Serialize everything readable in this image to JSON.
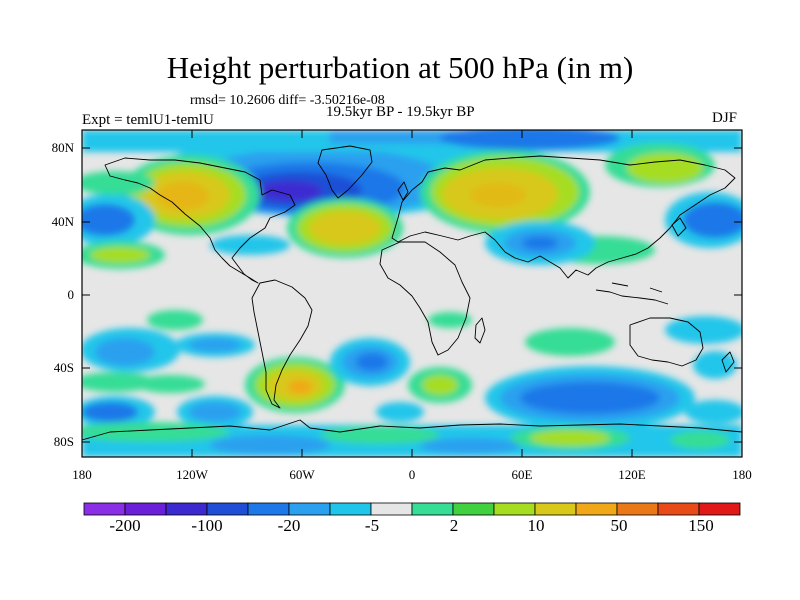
{
  "title": "Height perturbation at 500 hPa (in m)",
  "stats_line": "rmsd= 10.2606 diff= -3.50216e-08",
  "experiment": "Expt = temlU1-temlU",
  "period": "19.5kyr BP - 19.5kyr BP",
  "season": "DJF",
  "map": {
    "lat_ticks": [
      "80N",
      "40N",
      "0",
      "40S",
      "80S"
    ],
    "lon_ticks": [
      "180",
      "120W",
      "60W",
      "0",
      "60E",
      "120E",
      "180"
    ]
  },
  "colorbar": {
    "labels": [
      "-200",
      "-100",
      "-20",
      "-5",
      "2",
      "10",
      "50",
      "150"
    ],
    "colors": [
      "#8b2fe6",
      "#6a1fd8",
      "#3c2ad0",
      "#1f4fd6",
      "#1f78e8",
      "#2aa0ef",
      "#20c6ea",
      "#e6e6e6",
      "#36dd95",
      "#40d040",
      "#a6dd20",
      "#d8c81a",
      "#f0a818",
      "#ea7818",
      "#e84a18",
      "#e01818"
    ]
  },
  "palette": {
    "neutral": "#e6e6e6",
    "deep_blue": "#1f3fc8",
    "blue": "#1f78e8",
    "light_blue": "#20c6ea",
    "green_light": "#36dd95",
    "green": "#40d040",
    "yellow": "#d8c81a",
    "orange": "#f0a818",
    "coastline": "#000000"
  }
}
